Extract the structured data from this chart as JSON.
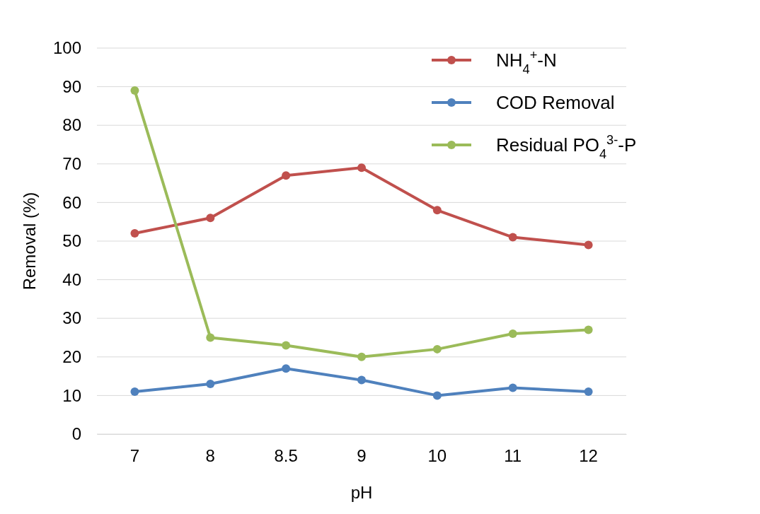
{
  "chart_data": {
    "type": "line",
    "xlabel": "pH",
    "ylabel": "Removal (%)",
    "categories": [
      "7",
      "8",
      "8.5",
      "9",
      "10",
      "11",
      "12"
    ],
    "series": [
      {
        "name": "NH$_{4}$$^{+}$-N",
        "color": "#c0504d",
        "values": [
          52,
          56,
          67,
          69,
          58,
          51,
          49
        ]
      },
      {
        "name": "COD Removal",
        "color": "#4f81bd",
        "values": [
          11,
          13,
          17,
          14,
          10,
          12,
          11
        ]
      },
      {
        "name": "Residual PO$_{4}$$^{3-}$-P",
        "color": "#9bbb59",
        "values": [
          89,
          25,
          23,
          20,
          22,
          26,
          27
        ]
      }
    ],
    "ylim": [
      0,
      100
    ],
    "yticks": [
      0,
      10,
      20,
      30,
      40,
      50,
      60,
      70,
      80,
      90,
      100
    ],
    "grid": "y",
    "legend": "top right",
    "marker": "circle",
    "line_style": "solid"
  }
}
